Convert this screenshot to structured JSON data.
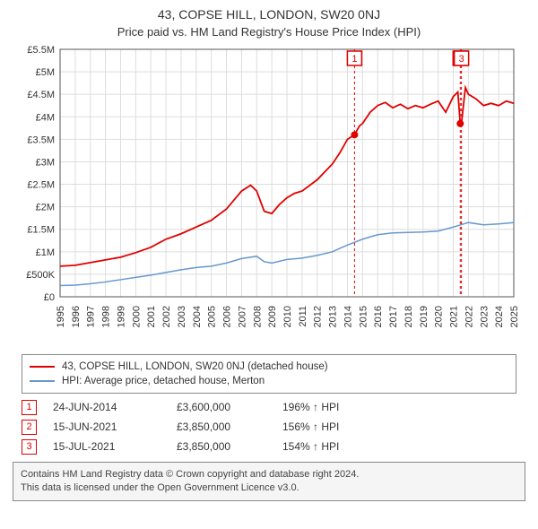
{
  "title": "43, COPSE HILL, LONDON, SW20 0NJ",
  "subtitle": "Price paid vs. HM Land Registry's House Price Index (HPI)",
  "chart": {
    "type": "line",
    "x_years": [
      1995,
      1996,
      1997,
      1998,
      1999,
      2000,
      2001,
      2002,
      2003,
      2004,
      2005,
      2006,
      2007,
      2008,
      2009,
      2010,
      2011,
      2012,
      2013,
      2014,
      2015,
      2016,
      2017,
      2018,
      2019,
      2020,
      2021,
      2022,
      2023,
      2024,
      2025
    ],
    "ylim": [
      0,
      5500000
    ],
    "ytick_step": 500000,
    "ytick_labels": [
      "£0",
      "£500K",
      "£1M",
      "£1.5M",
      "£2M",
      "£2.5M",
      "£3M",
      "£3.5M",
      "£4M",
      "£4.5M",
      "£5M",
      "£5.5M"
    ],
    "background_color": "#ffffff",
    "grid_color": "#dddddd",
    "axis_color": "#555555",
    "label_fontsize": 11,
    "series": [
      {
        "name": "43, COPSE HILL, LONDON, SW20 0NJ (detached house)",
        "color": "#e00000",
        "line_width": 1.8,
        "data": [
          [
            1995,
            680000
          ],
          [
            1996,
            700000
          ],
          [
            1997,
            760000
          ],
          [
            1998,
            820000
          ],
          [
            1999,
            880000
          ],
          [
            2000,
            980000
          ],
          [
            2001,
            1100000
          ],
          [
            2002,
            1280000
          ],
          [
            2003,
            1400000
          ],
          [
            2004,
            1550000
          ],
          [
            2005,
            1700000
          ],
          [
            2006,
            1950000
          ],
          [
            2007,
            2350000
          ],
          [
            2007.6,
            2480000
          ],
          [
            2008,
            2350000
          ],
          [
            2008.5,
            1900000
          ],
          [
            2009,
            1850000
          ],
          [
            2009.5,
            2050000
          ],
          [
            2010,
            2200000
          ],
          [
            2010.5,
            2300000
          ],
          [
            2011,
            2350000
          ],
          [
            2012,
            2600000
          ],
          [
            2013,
            2950000
          ],
          [
            2013.5,
            3200000
          ],
          [
            2014,
            3500000
          ],
          [
            2014.47,
            3600000
          ],
          [
            2014.8,
            3800000
          ],
          [
            2015,
            3850000
          ],
          [
            2015.5,
            4100000
          ],
          [
            2016,
            4250000
          ],
          [
            2016.5,
            4320000
          ],
          [
            2017,
            4200000
          ],
          [
            2017.5,
            4280000
          ],
          [
            2018,
            4180000
          ],
          [
            2018.5,
            4250000
          ],
          [
            2019,
            4200000
          ],
          [
            2019.5,
            4280000
          ],
          [
            2020,
            4350000
          ],
          [
            2020.5,
            4100000
          ],
          [
            2021,
            4450000
          ],
          [
            2021.3,
            4550000
          ],
          [
            2021.46,
            3850000
          ],
          [
            2021.54,
            3850000
          ],
          [
            2021.8,
            4650000
          ],
          [
            2022,
            4500000
          ],
          [
            2022.5,
            4400000
          ],
          [
            2023,
            4250000
          ],
          [
            2023.5,
            4300000
          ],
          [
            2024,
            4250000
          ],
          [
            2024.5,
            4350000
          ],
          [
            2025,
            4300000
          ]
        ]
      },
      {
        "name": "HPI: Average price, detached house, Merton",
        "color": "#6699cc",
        "line_width": 1.5,
        "data": [
          [
            1995,
            250000
          ],
          [
            1996,
            260000
          ],
          [
            1997,
            290000
          ],
          [
            1998,
            330000
          ],
          [
            1999,
            380000
          ],
          [
            2000,
            430000
          ],
          [
            2001,
            480000
          ],
          [
            2002,
            540000
          ],
          [
            2003,
            600000
          ],
          [
            2004,
            650000
          ],
          [
            2005,
            680000
          ],
          [
            2006,
            750000
          ],
          [
            2007,
            850000
          ],
          [
            2008,
            900000
          ],
          [
            2008.5,
            780000
          ],
          [
            2009,
            750000
          ],
          [
            2010,
            830000
          ],
          [
            2011,
            860000
          ],
          [
            2012,
            920000
          ],
          [
            2013,
            1000000
          ],
          [
            2014,
            1150000
          ],
          [
            2015,
            1280000
          ],
          [
            2016,
            1380000
          ],
          [
            2017,
            1420000
          ],
          [
            2018,
            1430000
          ],
          [
            2019,
            1440000
          ],
          [
            2020,
            1460000
          ],
          [
            2021,
            1550000
          ],
          [
            2022,
            1650000
          ],
          [
            2023,
            1600000
          ],
          [
            2024,
            1620000
          ],
          [
            2025,
            1650000
          ]
        ]
      }
    ],
    "transaction_markers": [
      {
        "n": 1,
        "x": 2014.47,
        "y": 3600000,
        "dot": true
      },
      {
        "n": 2,
        "x": 2021.46,
        "y": 3850000,
        "dot": true
      },
      {
        "n": 3,
        "x": 2021.54,
        "y": 3850000,
        "dot": false
      }
    ],
    "vline_color": "#e00000",
    "vline_dash": "3,3"
  },
  "legend": {
    "items": [
      {
        "label": "43, COPSE HILL, LONDON, SW20 0NJ (detached house)",
        "color": "#e00000"
      },
      {
        "label": "HPI: Average price, detached house, Merton",
        "color": "#6699cc"
      }
    ]
  },
  "transactions": [
    {
      "n": "1",
      "date": "24-JUN-2014",
      "price": "£3,600,000",
      "pct": "196% ↑ HPI"
    },
    {
      "n": "2",
      "date": "15-JUN-2021",
      "price": "£3,850,000",
      "pct": "156% ↑ HPI"
    },
    {
      "n": "3",
      "date": "15-JUL-2021",
      "price": "£3,850,000",
      "pct": "154% ↑ HPI"
    }
  ],
  "footer1": "Contains HM Land Registry data © Crown copyright and database right 2024.",
  "footer2": "This data is licensed under the Open Government Licence v3.0."
}
